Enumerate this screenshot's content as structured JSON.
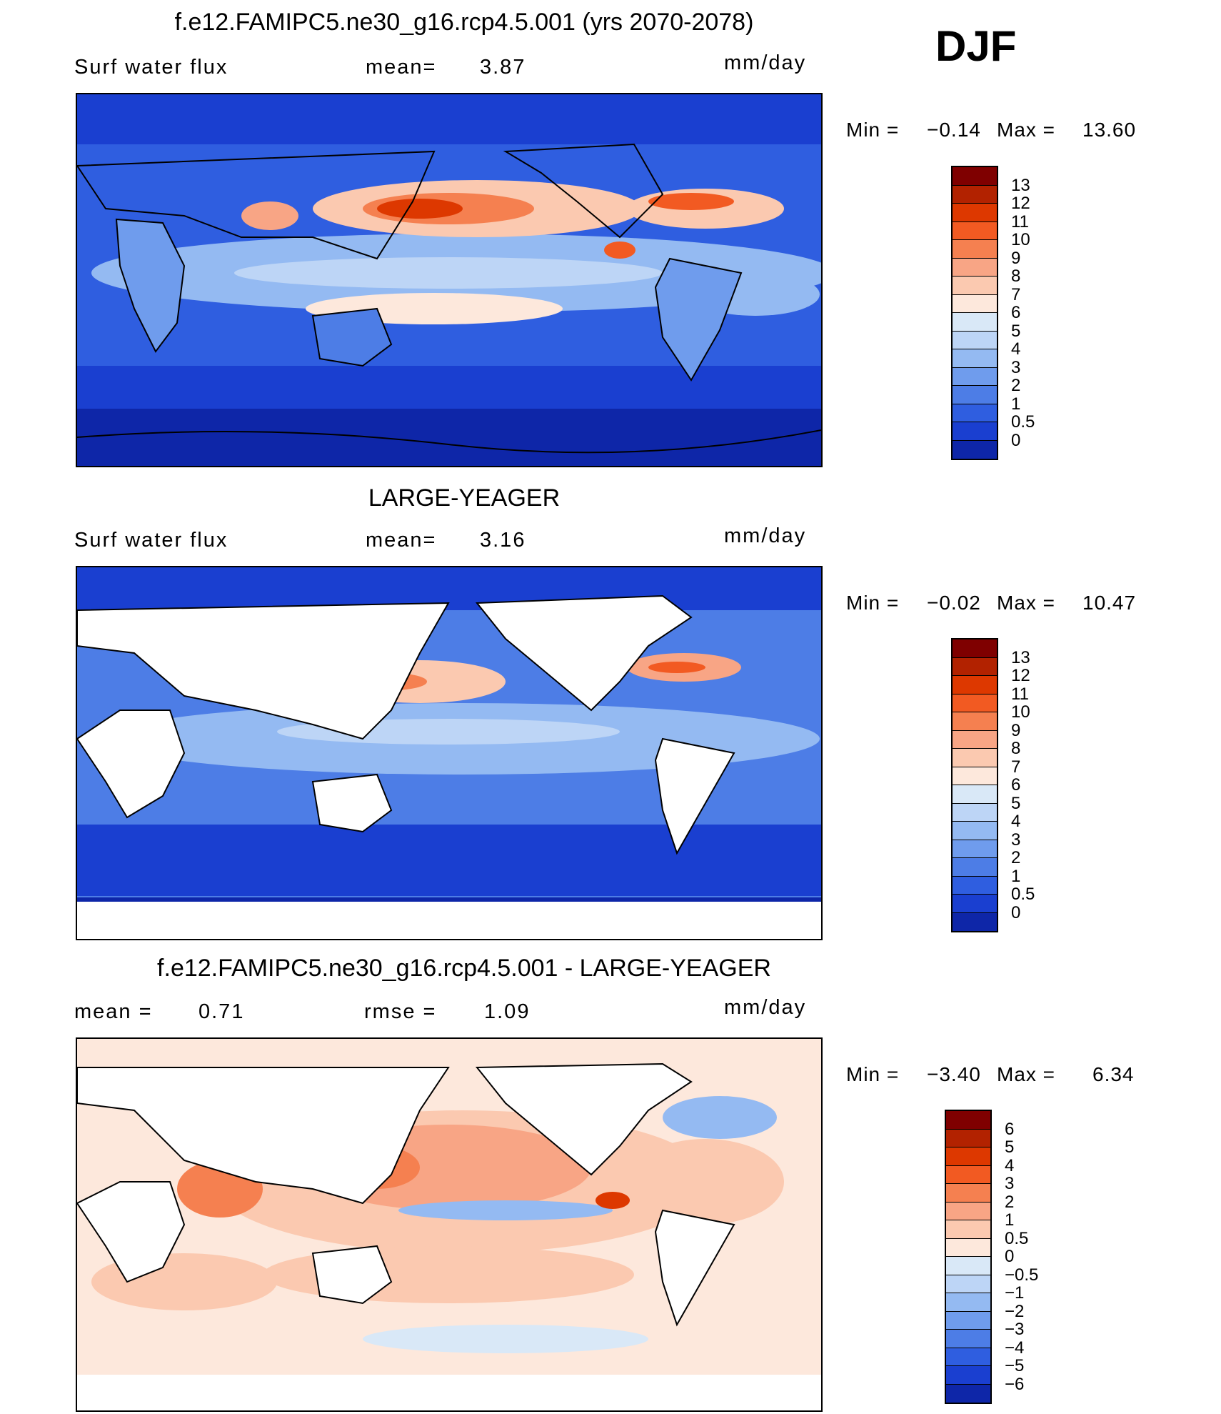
{
  "season": "DJF",
  "panels": [
    {
      "title": "f.e12.FAMIPC5.ne30_g16.rcp4.5.001 (yrs 2070-2078)",
      "left_label": "Surf water flux",
      "mid_label": "mean=",
      "mid_value": "3.87",
      "units": "mm/day",
      "min_label": "Min =",
      "min_value": "−0.14",
      "max_label": "Max =",
      "max_value": "13.60",
      "land_masked": false,
      "colorbar": {
        "levels": [
          "13",
          "12",
          "11",
          "10",
          "9",
          "8",
          "7",
          "6",
          "5",
          "4",
          "3",
          "2",
          "1",
          "0.5",
          "0"
        ],
        "colors": [
          "#7f0000",
          "#b22200",
          "#dd3800",
          "#f25a22",
          "#f58050",
          "#f8a585",
          "#fbc9b0",
          "#fde8dc",
          "#d9e8f7",
          "#bdd5f6",
          "#94baf2",
          "#6f9ced",
          "#4d7de6",
          "#2f5ee0",
          "#1a3fd0",
          "#0e26a8"
        ]
      },
      "chart_data": {
        "type": "heatmap",
        "title": "f.e12.FAMIPC5.ne30_g16.rcp4.5.001 (yrs 2070-2078)",
        "variable": "Surf water flux",
        "units": "mm/day",
        "mean": 3.87,
        "min": -0.14,
        "max": 13.6,
        "contour_levels": [
          0,
          0.5,
          1,
          2,
          3,
          4,
          5,
          6,
          7,
          8,
          9,
          10,
          11,
          12,
          13
        ]
      }
    },
    {
      "title": "LARGE-YEAGER",
      "left_label": "Surf water flux",
      "mid_label": "mean=",
      "mid_value": "3.16",
      "units": "mm/day",
      "min_label": "Min =",
      "min_value": "−0.02",
      "max_label": "Max =",
      "max_value": "10.47",
      "land_masked": true,
      "colorbar": {
        "levels": [
          "13",
          "12",
          "11",
          "10",
          "9",
          "8",
          "7",
          "6",
          "5",
          "4",
          "3",
          "2",
          "1",
          "0.5",
          "0"
        ],
        "colors": [
          "#7f0000",
          "#b22200",
          "#dd3800",
          "#f25a22",
          "#f58050",
          "#f8a585",
          "#fbc9b0",
          "#fde8dc",
          "#d9e8f7",
          "#bdd5f6",
          "#94baf2",
          "#6f9ced",
          "#4d7de6",
          "#2f5ee0",
          "#1a3fd0",
          "#0e26a8"
        ]
      },
      "chart_data": {
        "type": "heatmap",
        "title": "LARGE-YEAGER",
        "variable": "Surf water flux",
        "units": "mm/day",
        "mean": 3.16,
        "min": -0.02,
        "max": 10.47,
        "contour_levels": [
          0,
          0.5,
          1,
          2,
          3,
          4,
          5,
          6,
          7,
          8,
          9,
          10,
          11,
          12,
          13
        ]
      }
    },
    {
      "title": "f.e12.FAMIPC5.ne30_g16.rcp4.5.001 - LARGE-YEAGER",
      "left_label": "mean =",
      "left_value": "0.71",
      "mid_label": "rmse =",
      "mid_value": "1.09",
      "units": "mm/day",
      "min_label": "Min =",
      "min_value": "−3.40",
      "max_label": "Max =",
      "max_value": "6.34",
      "land_masked": true,
      "colorbar": {
        "levels": [
          "6",
          "5",
          "4",
          "3",
          "2",
          "1",
          "0.5",
          "0",
          "−0.5",
          "−1",
          "−2",
          "−3",
          "−4",
          "−5",
          "−6"
        ],
        "colors": [
          "#7f0000",
          "#b22200",
          "#dd3800",
          "#f25a22",
          "#f58050",
          "#f8a585",
          "#fbc9b0",
          "#fde8dc",
          "#d9e8f7",
          "#bdd5f6",
          "#94baf2",
          "#6f9ced",
          "#4d7de6",
          "#2f5ee0",
          "#1a3fd0",
          "#0e26a8"
        ]
      },
      "chart_data": {
        "type": "heatmap",
        "title": "f.e12.FAMIPC5.ne30_g16.rcp4.5.001 - LARGE-YEAGER",
        "units": "mm/day",
        "mean": 0.71,
        "rmse": 1.09,
        "min": -3.4,
        "max": 6.34,
        "contour_levels": [
          -6,
          -5,
          -4,
          -3,
          -2,
          -1,
          -0.5,
          0,
          0.5,
          1,
          2,
          3,
          4,
          5,
          6
        ]
      }
    }
  ]
}
